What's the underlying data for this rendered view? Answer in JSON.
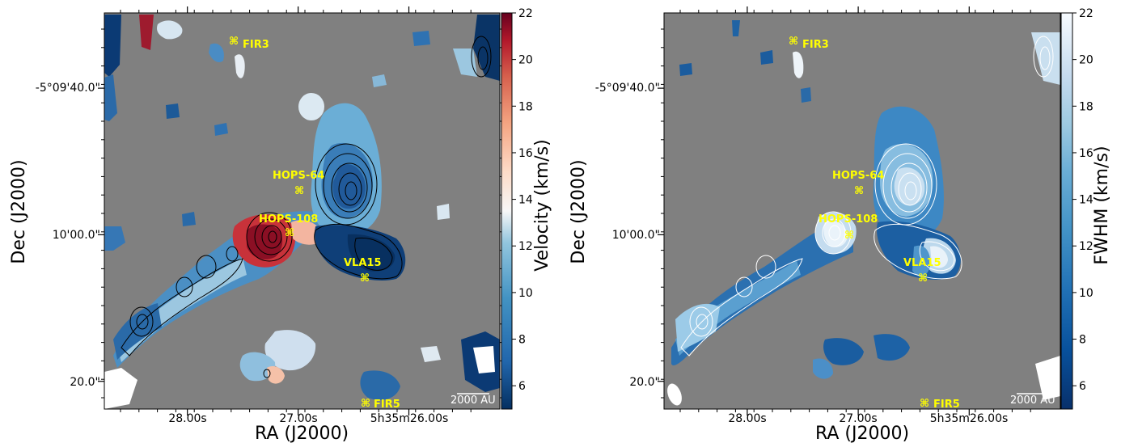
{
  "chart_data": [
    {
      "type": "heatmap",
      "panel": "left",
      "xlabel": "RA (J2000)",
      "ylabel": "Dec (J2000)",
      "x_ticks": [
        "28.00s",
        "27.00s",
        "5h35m26.00s"
      ],
      "y_ticks": [
        "-5°09'40.0\"",
        "10'00.0\"",
        "20.0\""
      ],
      "colorbar": {
        "label": "Velocity (km/s)",
        "ticks": [
          6,
          8,
          10,
          12,
          14,
          16,
          18,
          20,
          22
        ],
        "range": [
          5,
          22
        ],
        "colormap": "RdBu_r"
      },
      "sources": [
        {
          "name": "FIR3"
        },
        {
          "name": "HOPS-64"
        },
        {
          "name": "HOPS-108"
        },
        {
          "name": "VLA15"
        },
        {
          "name": "FIR5"
        }
      ],
      "scalebar": "2000 AU",
      "background_color": "#808080"
    },
    {
      "type": "heatmap",
      "panel": "right",
      "xlabel": "RA (J2000)",
      "ylabel": "Dec (J2000)",
      "x_ticks": [
        "28.00s",
        "27.00s",
        "5h35m26.00s"
      ],
      "y_ticks": [
        "-5°09'40.0\"",
        "10'00.0\"",
        "20.0\""
      ],
      "colorbar": {
        "label": "FWHM (km/s)",
        "ticks": [
          6,
          8,
          10,
          12,
          14,
          16,
          18,
          20,
          22
        ],
        "range": [
          5,
          22
        ],
        "colormap": "Blues_r"
      },
      "sources": [
        {
          "name": "FIR3"
        },
        {
          "name": "HOPS-64"
        },
        {
          "name": "HOPS-108"
        },
        {
          "name": "VLA15"
        },
        {
          "name": "FIR5"
        }
      ],
      "scalebar": "2000 AU",
      "background_color": "#808080"
    }
  ]
}
